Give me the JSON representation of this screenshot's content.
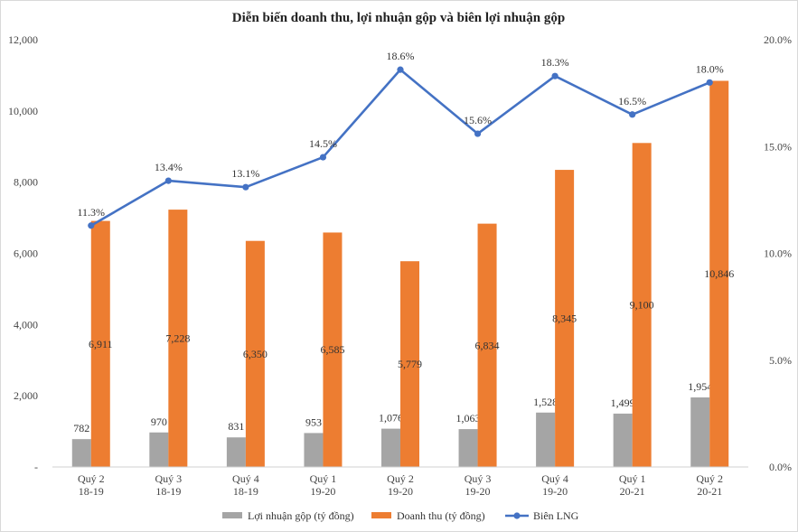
{
  "chart_data": {
    "type": "bar",
    "title": "Diễn biến doanh thu, lợi nhuận gộp và biên lợi nhuận gộp",
    "categories": [
      [
        "Quý 2",
        "18-19"
      ],
      [
        "Quý 3",
        "18-19"
      ],
      [
        "Quý 4",
        "18-19"
      ],
      [
        "Quý 1",
        "19-20"
      ],
      [
        "Quý 2",
        "19-20"
      ],
      [
        "Quý 3",
        "19-20"
      ],
      [
        "Quý 4",
        "19-20"
      ],
      [
        "Quý 1",
        "20-21"
      ],
      [
        "Quý 2",
        "20-21"
      ]
    ],
    "series": [
      {
        "name": "Lợi nhuận gộp (tỷ đồng)",
        "kind": "bar",
        "axis": "left",
        "color": "#A5A5A5",
        "values": [
          782,
          970,
          831,
          953,
          1076,
          1063,
          1528,
          1499,
          1954
        ],
        "labels": [
          "782",
          "970",
          "831",
          "953",
          "1,076",
          "1,063",
          "1,528",
          "1,499",
          "1,954"
        ]
      },
      {
        "name": "Doanh thu (tỷ đồng)",
        "kind": "bar",
        "axis": "left",
        "color": "#ED7D31",
        "values": [
          6911,
          7228,
          6350,
          6585,
          5779,
          6834,
          8345,
          9100,
          10846
        ],
        "labels": [
          "6,911",
          "7,228",
          "6,350",
          "6,585",
          "5,779",
          "6,834",
          "8,345",
          "9,100",
          "10,846"
        ]
      },
      {
        "name": "Biên LNG",
        "kind": "line",
        "axis": "right",
        "color": "#4472C4",
        "values": [
          11.3,
          13.4,
          13.1,
          14.5,
          18.6,
          15.6,
          18.3,
          16.5,
          18.0
        ],
        "labels": [
          "11.3%",
          "13.4%",
          "13.1%",
          "14.5%",
          "18.6%",
          "15.6%",
          "18.3%",
          "16.5%",
          "18.0%"
        ]
      }
    ],
    "ylim_left": [
      0,
      12000
    ],
    "ylim_right": [
      0,
      20
    ],
    "left_ticks": [
      0,
      2000,
      4000,
      6000,
      8000,
      10000,
      12000
    ],
    "left_tick_labels": [
      "-",
      "2,000",
      "4,000",
      "6,000",
      "8,000",
      "10,000",
      "12,000"
    ],
    "right_ticks": [
      0,
      5,
      10,
      15,
      20
    ],
    "right_tick_labels": [
      "0.0%",
      "5.0%",
      "10.0%",
      "15.0%",
      "20.0%"
    ],
    "grid": false,
    "legend_position": "bottom"
  }
}
